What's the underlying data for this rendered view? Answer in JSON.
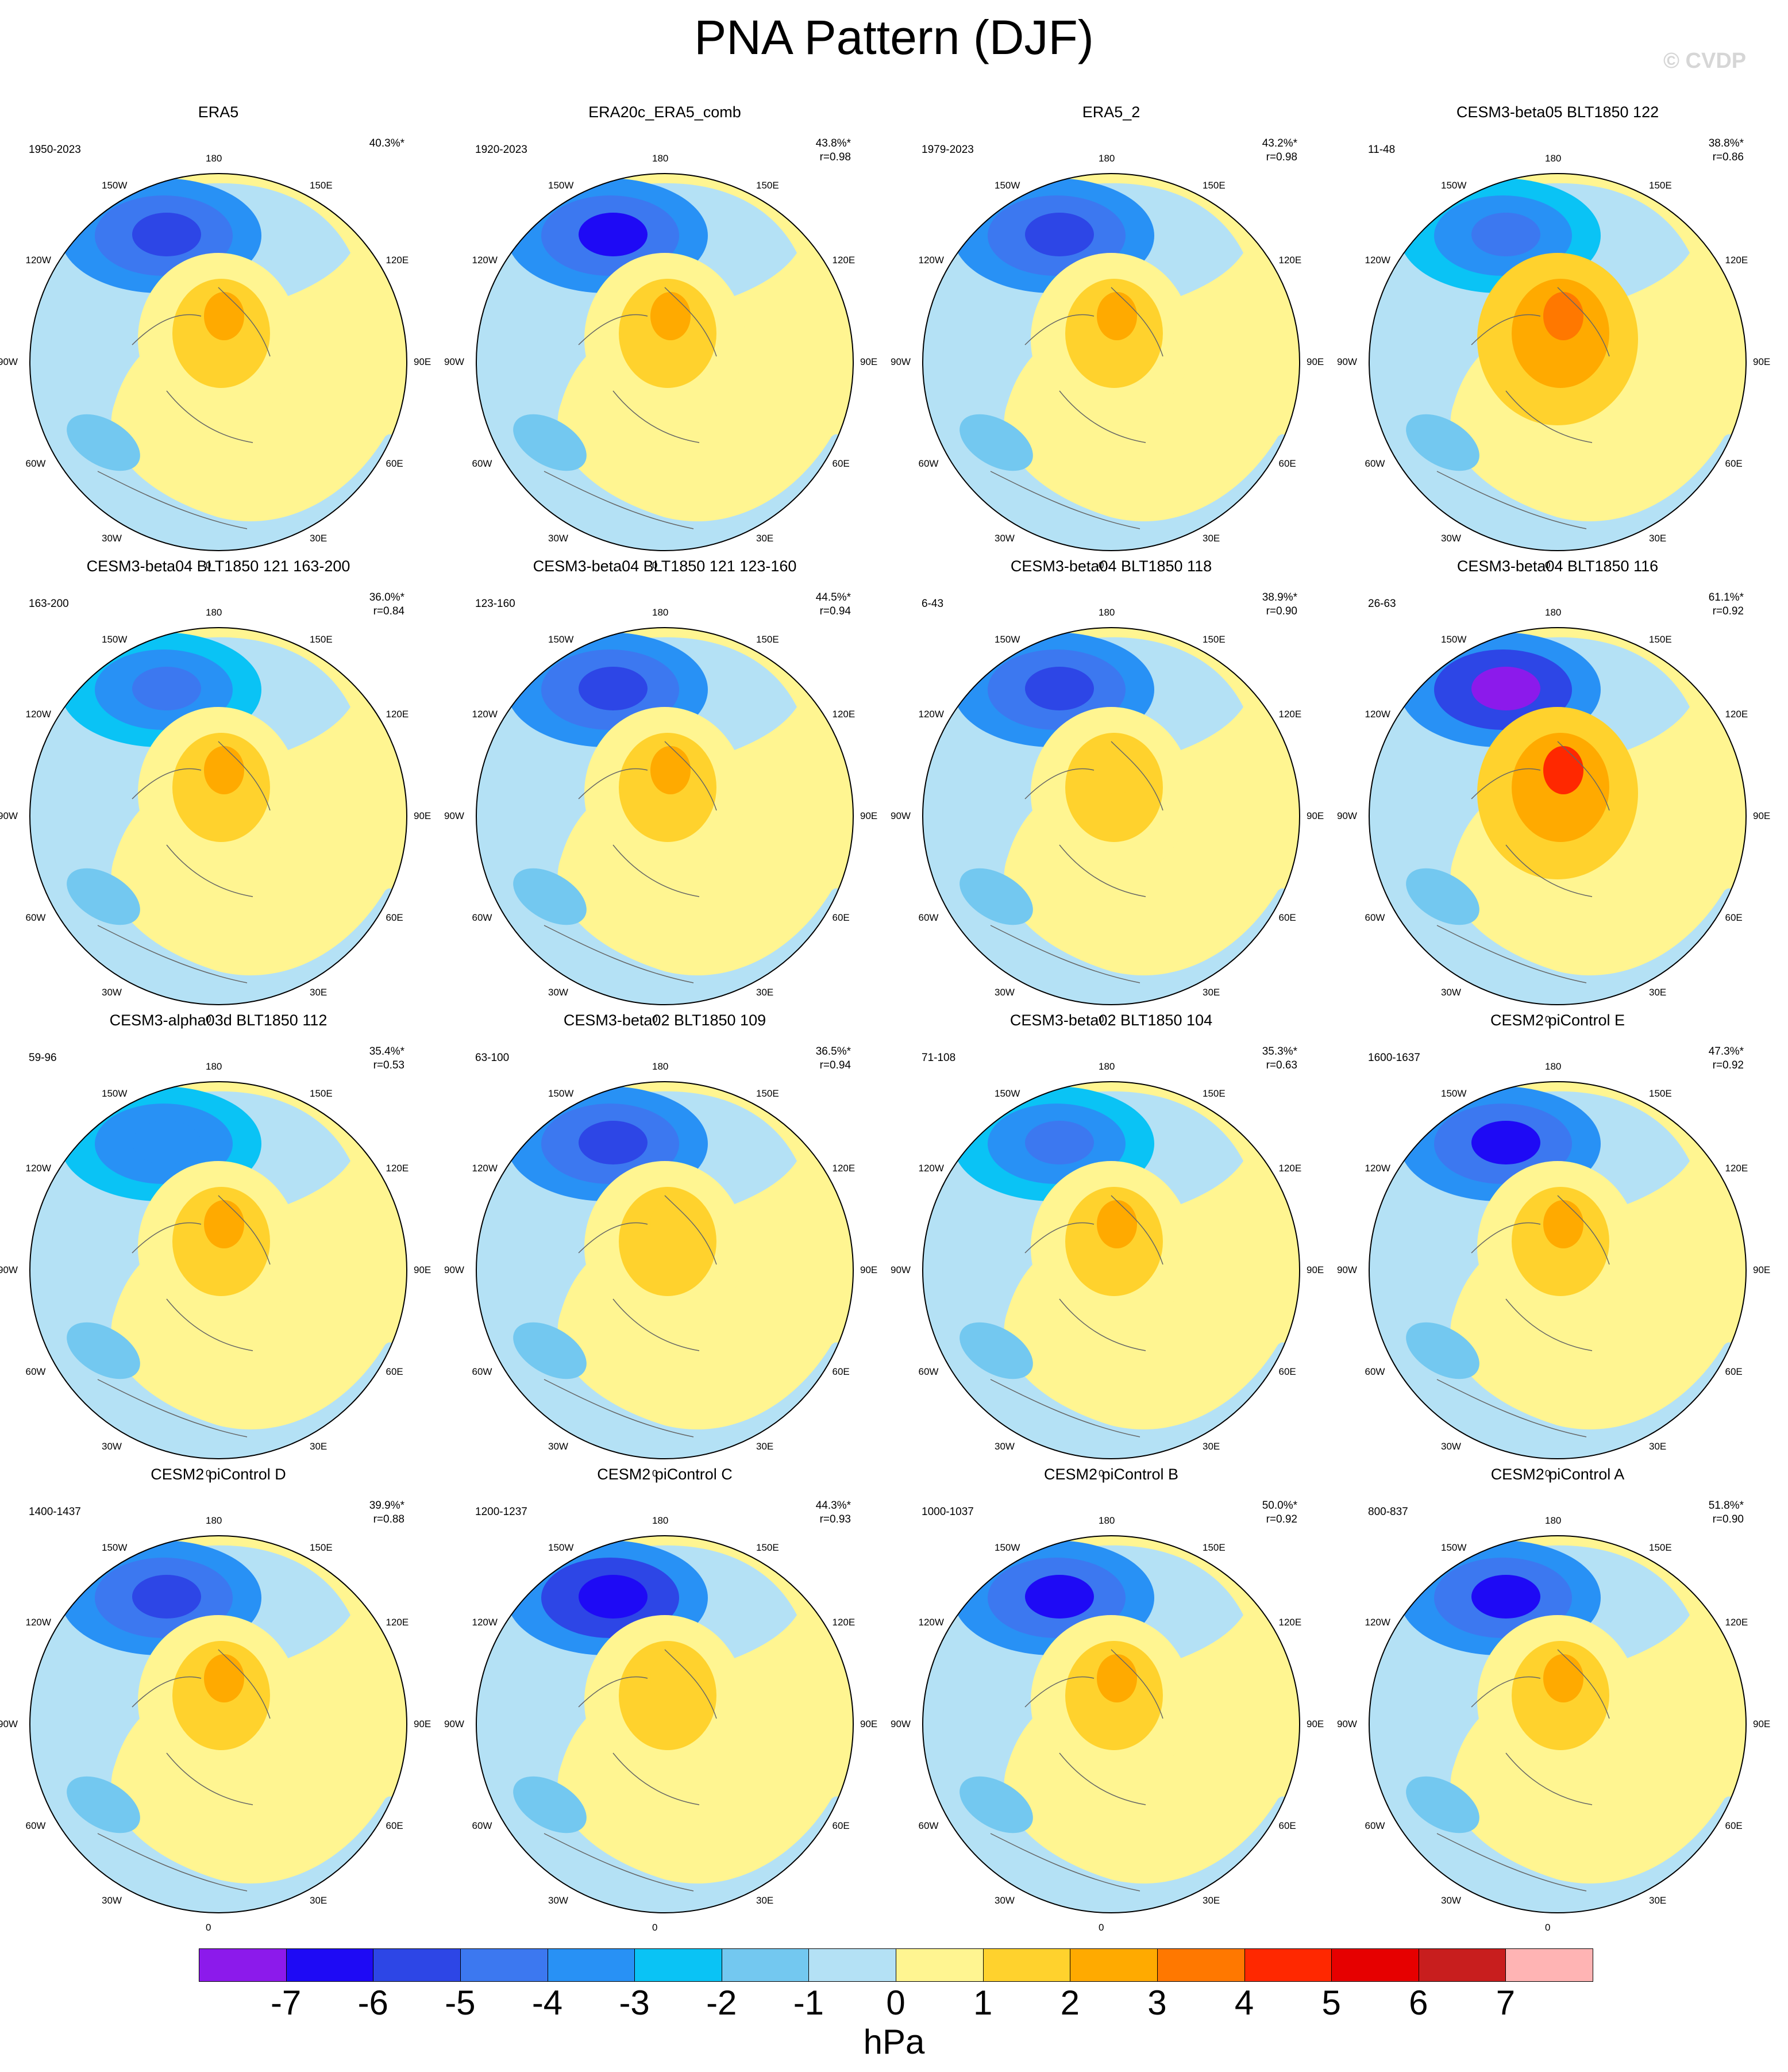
{
  "title": "PNA Pattern (DJF)",
  "watermark": "© CVDP",
  "longitude_labels": [
    "180",
    "150E",
    "120E",
    "90E",
    "60E",
    "30E",
    "0",
    "30W",
    "60W",
    "90W",
    "120W",
    "150W"
  ],
  "colorbar": {
    "units": "hPa",
    "labels": [
      "-7",
      "-6",
      "-5",
      "-4",
      "-3",
      "-2",
      "-1",
      "0",
      "1",
      "2",
      "3",
      "4",
      "5",
      "6",
      "7"
    ],
    "colors": [
      "#8c1aeb",
      "#1e0af5",
      "#2d46e6",
      "#3c78f0",
      "#2891f5",
      "#0ac3f5",
      "#73c8f0",
      "#b4e1f5",
      "#fff591",
      "#ffd22d",
      "#ffaa00",
      "#ff7800",
      "#ff2800",
      "#e60000",
      "#c81e1e",
      "#ffb4b4"
    ]
  },
  "panels": [
    {
      "title": "ERA5",
      "period": "1950-2023",
      "pct": "40.3%*",
      "r": "",
      "neg": [
        -4,
        -5,
        -3
      ],
      "pos": [
        2,
        3,
        1
      ]
    },
    {
      "title": "ERA20c_ERA5_comb",
      "period": "1920-2023",
      "pct": "43.8%*",
      "r": "r=0.98",
      "neg": [
        -4,
        -6,
        -3
      ],
      "pos": [
        2,
        3,
        1
      ]
    },
    {
      "title": "ERA5_2",
      "period": "1979-2023",
      "pct": "43.2%*",
      "r": "r=0.98",
      "neg": [
        -4,
        -5,
        -3
      ],
      "pos": [
        2,
        3,
        1
      ]
    },
    {
      "title": "CESM3-beta05 BLT1850 122",
      "period": "11-48",
      "pct": "38.8%*",
      "r": "r=0.86",
      "neg": [
        -3,
        -4,
        -2
      ],
      "pos": [
        3,
        4,
        2
      ]
    },
    {
      "title": "CESM3-beta04 BLT1850 121 163-200",
      "period": "163-200",
      "pct": "36.0%*",
      "r": "r=0.84",
      "neg": [
        -3,
        -4,
        -2
      ],
      "pos": [
        2,
        3,
        1
      ]
    },
    {
      "title": "CESM3-beta04 BLT1850 121 123-160",
      "period": "123-160",
      "pct": "44.5%*",
      "r": "r=0.94",
      "neg": [
        -4,
        -5,
        -3
      ],
      "pos": [
        2,
        3,
        1
      ]
    },
    {
      "title": "CESM3-beta04 BLT1850 118",
      "period": "6-43",
      "pct": "38.9%*",
      "r": "r=0.90",
      "neg": [
        -4,
        -5,
        -3
      ],
      "pos": [
        2,
        2,
        1
      ]
    },
    {
      "title": "CESM3-beta04 BLT1850 116",
      "period": "26-63",
      "pct": "61.1%*",
      "r": "r=0.92",
      "neg": [
        -5,
        -7,
        -3
      ],
      "pos": [
        3,
        5,
        2
      ]
    },
    {
      "title": "CESM3-alpha03d BLT1850 112",
      "period": "59-96",
      "pct": "35.4%*",
      "r": "r=0.53",
      "neg": [
        -3,
        -3,
        -2
      ],
      "pos": [
        2,
        3,
        1
      ]
    },
    {
      "title": "CESM3-beta02 BLT1850 109",
      "period": "63-100",
      "pct": "36.5%*",
      "r": "r=0.94",
      "neg": [
        -4,
        -5,
        -3
      ],
      "pos": [
        2,
        2,
        1
      ]
    },
    {
      "title": "CESM3-beta02 BLT1850 104",
      "period": "71-108",
      "pct": "35.3%*",
      "r": "r=0.63",
      "neg": [
        -3,
        -4,
        -2
      ],
      "pos": [
        2,
        3,
        1
      ]
    },
    {
      "title": "CESM2 piControl E",
      "period": "1600-1637",
      "pct": "47.3%*",
      "r": "r=0.92",
      "neg": [
        -4,
        -6,
        -3
      ],
      "pos": [
        2,
        3,
        1
      ]
    },
    {
      "title": "CESM2 piControl D",
      "period": "1400-1437",
      "pct": "39.9%*",
      "r": "r=0.88",
      "neg": [
        -4,
        -5,
        -3
      ],
      "pos": [
        2,
        3,
        1
      ]
    },
    {
      "title": "CESM2 piControl C",
      "period": "1200-1237",
      "pct": "44.3%*",
      "r": "r=0.93",
      "neg": [
        -5,
        -6,
        -3
      ],
      "pos": [
        2,
        2,
        1
      ]
    },
    {
      "title": "CESM2 piControl B",
      "period": "1000-1037",
      "pct": "50.0%*",
      "r": "r=0.92",
      "neg": [
        -4,
        -6,
        -3
      ],
      "pos": [
        2,
        3,
        1
      ]
    },
    {
      "title": "CESM2 piControl A",
      "period": "800-837",
      "pct": "51.8%*",
      "r": "r=0.90",
      "neg": [
        -4,
        -6,
        -3
      ],
      "pos": [
        2,
        3,
        1
      ]
    }
  ]
}
